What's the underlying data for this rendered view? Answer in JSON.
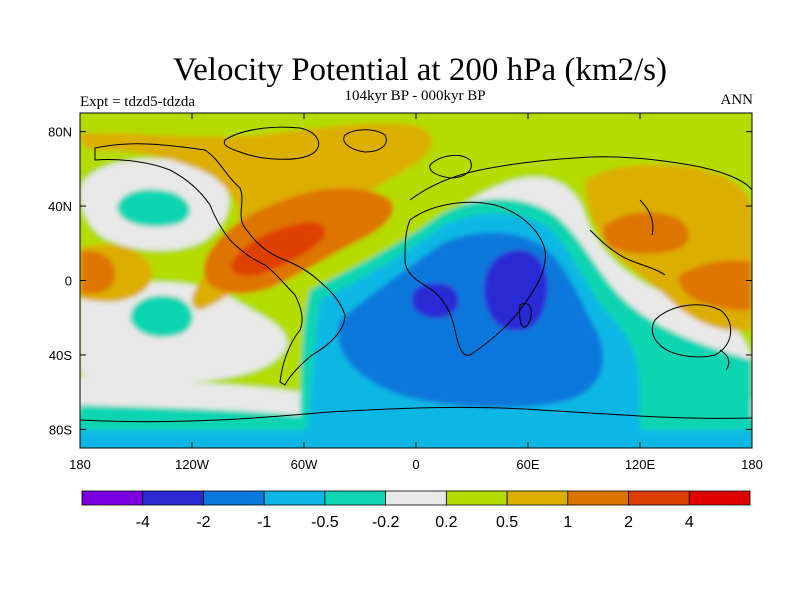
{
  "title": "Velocity Potential at 200 hPa (km2/s)",
  "subtitle": "104kyr BP - 000kyr BP",
  "left_label": "Expt = tdzd5-tdzda",
  "right_label": "ANN",
  "chart_data": {
    "type": "heatmap",
    "map_projection": "cylindrical-equidistant",
    "x_range": [
      -180,
      180
    ],
    "y_range": [
      -90,
      90
    ],
    "x_ticks": [
      {
        "value": -180,
        "label": "180"
      },
      {
        "value": -120,
        "label": "120W"
      },
      {
        "value": -60,
        "label": "60W"
      },
      {
        "value": 0,
        "label": "0"
      },
      {
        "value": 60,
        "label": "60E"
      },
      {
        "value": 120,
        "label": "120E"
      },
      {
        "value": 180,
        "label": "180"
      }
    ],
    "y_ticks": [
      {
        "value": 80,
        "label": "80N"
      },
      {
        "value": 40,
        "label": "40N"
      },
      {
        "value": 0,
        "label": "0"
      },
      {
        "value": -40,
        "label": "40S"
      },
      {
        "value": -80,
        "label": "80S"
      }
    ],
    "colorbar": {
      "colors": [
        "#7b00e0",
        "#2a2ad5",
        "#0a78dc",
        "#0cb7e4",
        "#10d5b2",
        "#e8e8e8",
        "#b4dc00",
        "#dcae00",
        "#de7400",
        "#de3f00",
        "#dc0000"
      ],
      "boundaries": [
        "-4",
        "-2",
        "-1",
        "-0.5",
        "-0.2",
        "0.2",
        "0.5",
        "1",
        "2",
        "4"
      ]
    }
  }
}
